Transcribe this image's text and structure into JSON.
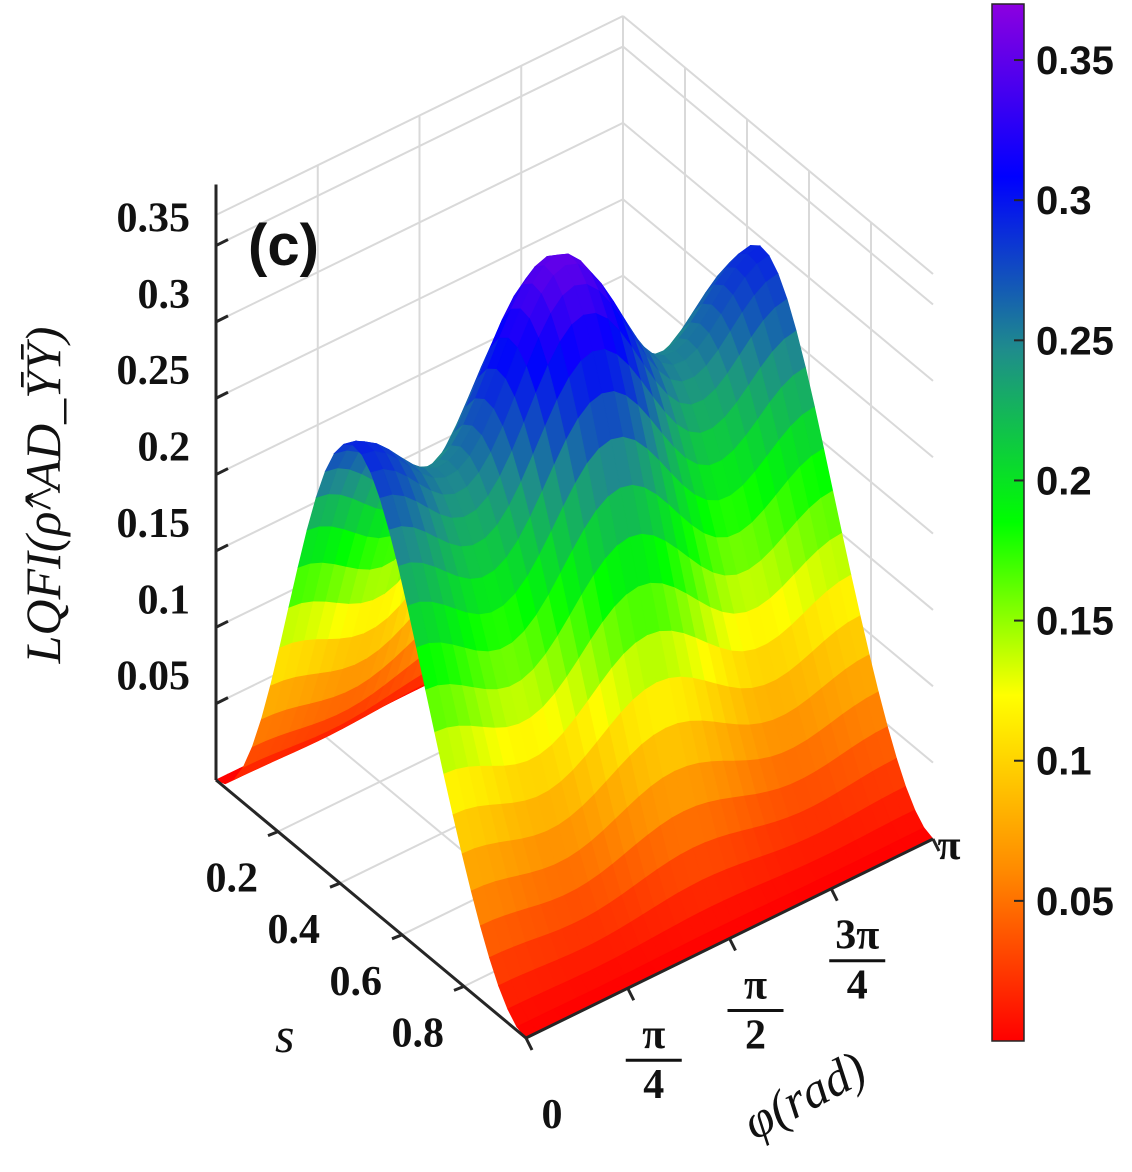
{
  "panel_label": "(c)",
  "chart_data": {
    "type": "surface",
    "title": "",
    "zlabel": "LQFI(ρ̂^AD_ȲȲ)",
    "xlabel": "φ(rad)",
    "ylabel": "s",
    "x_range": [
      0,
      3.1416
    ],
    "y_range": [
      0,
      1
    ],
    "z_range": [
      0,
      0.37
    ],
    "z_ticks": [
      "0.05",
      "0.1",
      "0.15",
      "0.2",
      "0.25",
      "0.3",
      "0.35"
    ],
    "z_tick_values": [
      0.05,
      0.1,
      0.15,
      0.2,
      0.25,
      0.3,
      0.35
    ],
    "s_ticks": [
      "0.2",
      "0.4",
      "0.6",
      "0.8"
    ],
    "s_tick_values": [
      0.2,
      0.4,
      0.6,
      0.8
    ],
    "phi_ticks": [
      {
        "num": "0",
        "den": ""
      },
      {
        "num": "π",
        "den": "4"
      },
      {
        "num": "π",
        "den": "2"
      },
      {
        "num": "3π",
        "den": "4"
      },
      {
        "num": "π",
        "den": ""
      }
    ],
    "phi_tick_values": [
      0,
      0.7854,
      1.5708,
      2.3562,
      3.1416
    ],
    "colorbar_ticks": [
      "0.05",
      "0.1",
      "0.15",
      "0.2",
      "0.25",
      "0.3",
      "0.35"
    ],
    "colorbar_tick_values": [
      0.05,
      0.1,
      0.15,
      0.2,
      0.25,
      0.3,
      0.35
    ],
    "colormap": [
      "#ff0000",
      "#ff8c00",
      "#ffff00",
      "#00ff00",
      "#1f8c8c",
      "#0000ff",
      "#8c00e0"
    ],
    "approx_peak": {
      "s": 0.5,
      "phi": 1.5708,
      "value": 0.36
    },
    "approx_side_peaks": [
      {
        "s": 0.5,
        "phi": 0,
        "value": 0.3
      },
      {
        "s": 0.5,
        "phi": 3.1416,
        "value": 0.3
      }
    ]
  }
}
